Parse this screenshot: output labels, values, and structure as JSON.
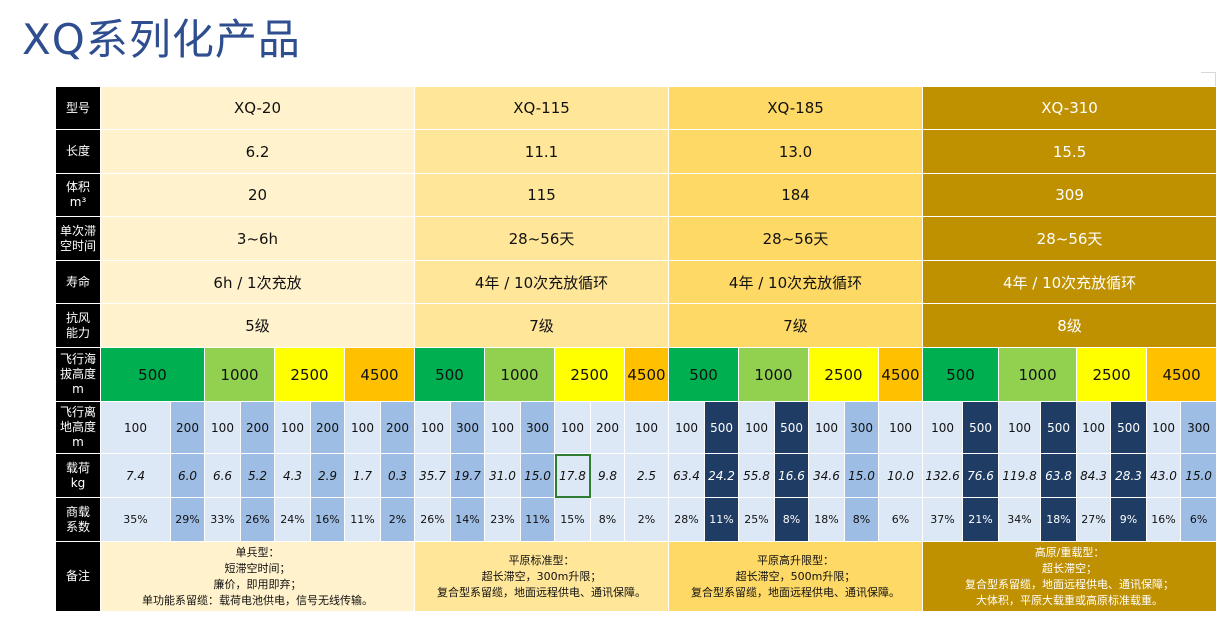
{
  "title": "XQ系列化产品",
  "labels": {
    "model": "型号",
    "length": "长度",
    "volume_1": "体积",
    "volume_2": "m³",
    "endurance_1": "单次滞",
    "endurance_2": "空时间",
    "life": "寿命",
    "wind_1": "抗风",
    "wind_2": "能力",
    "alt_1": "飞行海",
    "alt_2": "拔高度",
    "alt_3": "m",
    "agl_1": "飞行离",
    "agl_2": "地高度",
    "agl_3": "m",
    "payload_1": "载荷",
    "payload_2": "kg",
    "ratio_1": "商载",
    "ratio_2": "系数",
    "notes": "备注"
  },
  "models": [
    {
      "name": "XQ-20",
      "length": "6.2",
      "volume": "20",
      "endurance": "3~6h",
      "life": "6h / 1次充放",
      "wind": "5级",
      "altitudes": [
        "500",
        "1000",
        "2500",
        "4500"
      ],
      "agl": [
        "100",
        "200",
        "100",
        "200",
        "100",
        "200",
        "100",
        "200"
      ],
      "payload": [
        "7.4",
        "6.0",
        "6.6",
        "5.2",
        "4.3",
        "2.9",
        "1.7",
        "0.3"
      ],
      "ratio": [
        "35%",
        "29%",
        "33%",
        "26%",
        "24%",
        "16%",
        "11%",
        "2%"
      ],
      "notes": [
        "单兵型：",
        "短滞空时间；",
        "廉价，即用即弃；",
        "单功能系留缆：载荷电池供电，信号无线传输。"
      ]
    },
    {
      "name": "XQ-115",
      "length": "11.1",
      "volume": "115",
      "endurance": "28~56天",
      "life": "4年 / 10次充放循环",
      "wind": "7级",
      "altitudes": [
        "500",
        "1000",
        "2500",
        "4500"
      ],
      "agl": [
        "100",
        "300",
        "100",
        "300",
        "100",
        "200",
        "100"
      ],
      "payload": [
        "35.7",
        "19.7",
        "31.0",
        "15.0",
        "17.8",
        "9.8",
        "2.5"
      ],
      "ratio": [
        "26%",
        "14%",
        "23%",
        "11%",
        "15%",
        "8%",
        "2%"
      ],
      "notes": [
        "平原标准型：",
        "超长滞空，300m升限；",
        "复合型系留缆，地面远程供电、通讯保障。"
      ]
    },
    {
      "name": "XQ-185",
      "length": "13.0",
      "volume": "184",
      "endurance": "28~56天",
      "life": "4年 / 10次充放循环",
      "wind": "7级",
      "altitudes": [
        "500",
        "1000",
        "2500",
        "4500"
      ],
      "agl": [
        "100",
        "500",
        "100",
        "500",
        "100",
        "300",
        "100"
      ],
      "payload": [
        "63.4",
        "24.2",
        "55.8",
        "16.6",
        "34.6",
        "15.0",
        "10.0"
      ],
      "ratio": [
        "28%",
        "11%",
        "25%",
        "8%",
        "18%",
        "8%",
        "6%"
      ],
      "notes": [
        "平原高升限型：",
        "超长滞空，500m升限；",
        "复合型系留缆，地面远程供电、通讯保障。"
      ]
    },
    {
      "name": "XQ-310",
      "length": "15.5",
      "volume": "309",
      "endurance": "28~56天",
      "life": "4年 / 10次充放循环",
      "wind": "8级",
      "altitudes": [
        "500",
        "1000",
        "2500",
        "4500"
      ],
      "agl": [
        "100",
        "500",
        "100",
        "500",
        "100",
        "500",
        "100",
        "300"
      ],
      "payload": [
        "132.6",
        "76.6",
        "119.8",
        "63.8",
        "84.3",
        "28.3",
        "43.0",
        "15.0"
      ],
      "ratio": [
        "37%",
        "21%",
        "34%",
        "18%",
        "27%",
        "9%",
        "16%",
        "6%"
      ],
      "notes": [
        "高原/重载型：",
        "超长滞空；",
        "复合型系留缆，地面远程供电、通讯保障；",
        "大体积，平原大载重或高原标准载重。"
      ]
    }
  ],
  "colors": {
    "title": "#2e4e8f",
    "header": "#000000",
    "xq20": "#fff2cc",
    "xq115": "#ffe699",
    "xq185": "#ffd966",
    "xq310": "#bf9000",
    "alt_500": "#00b050",
    "alt_1000": "#92d050",
    "alt_2500": "#ffff00",
    "alt_4500": "#ffc000",
    "cell_light": "#dde8f6",
    "cell_mid": "#9dbde4",
    "cell_dark": "#1f3c64"
  }
}
